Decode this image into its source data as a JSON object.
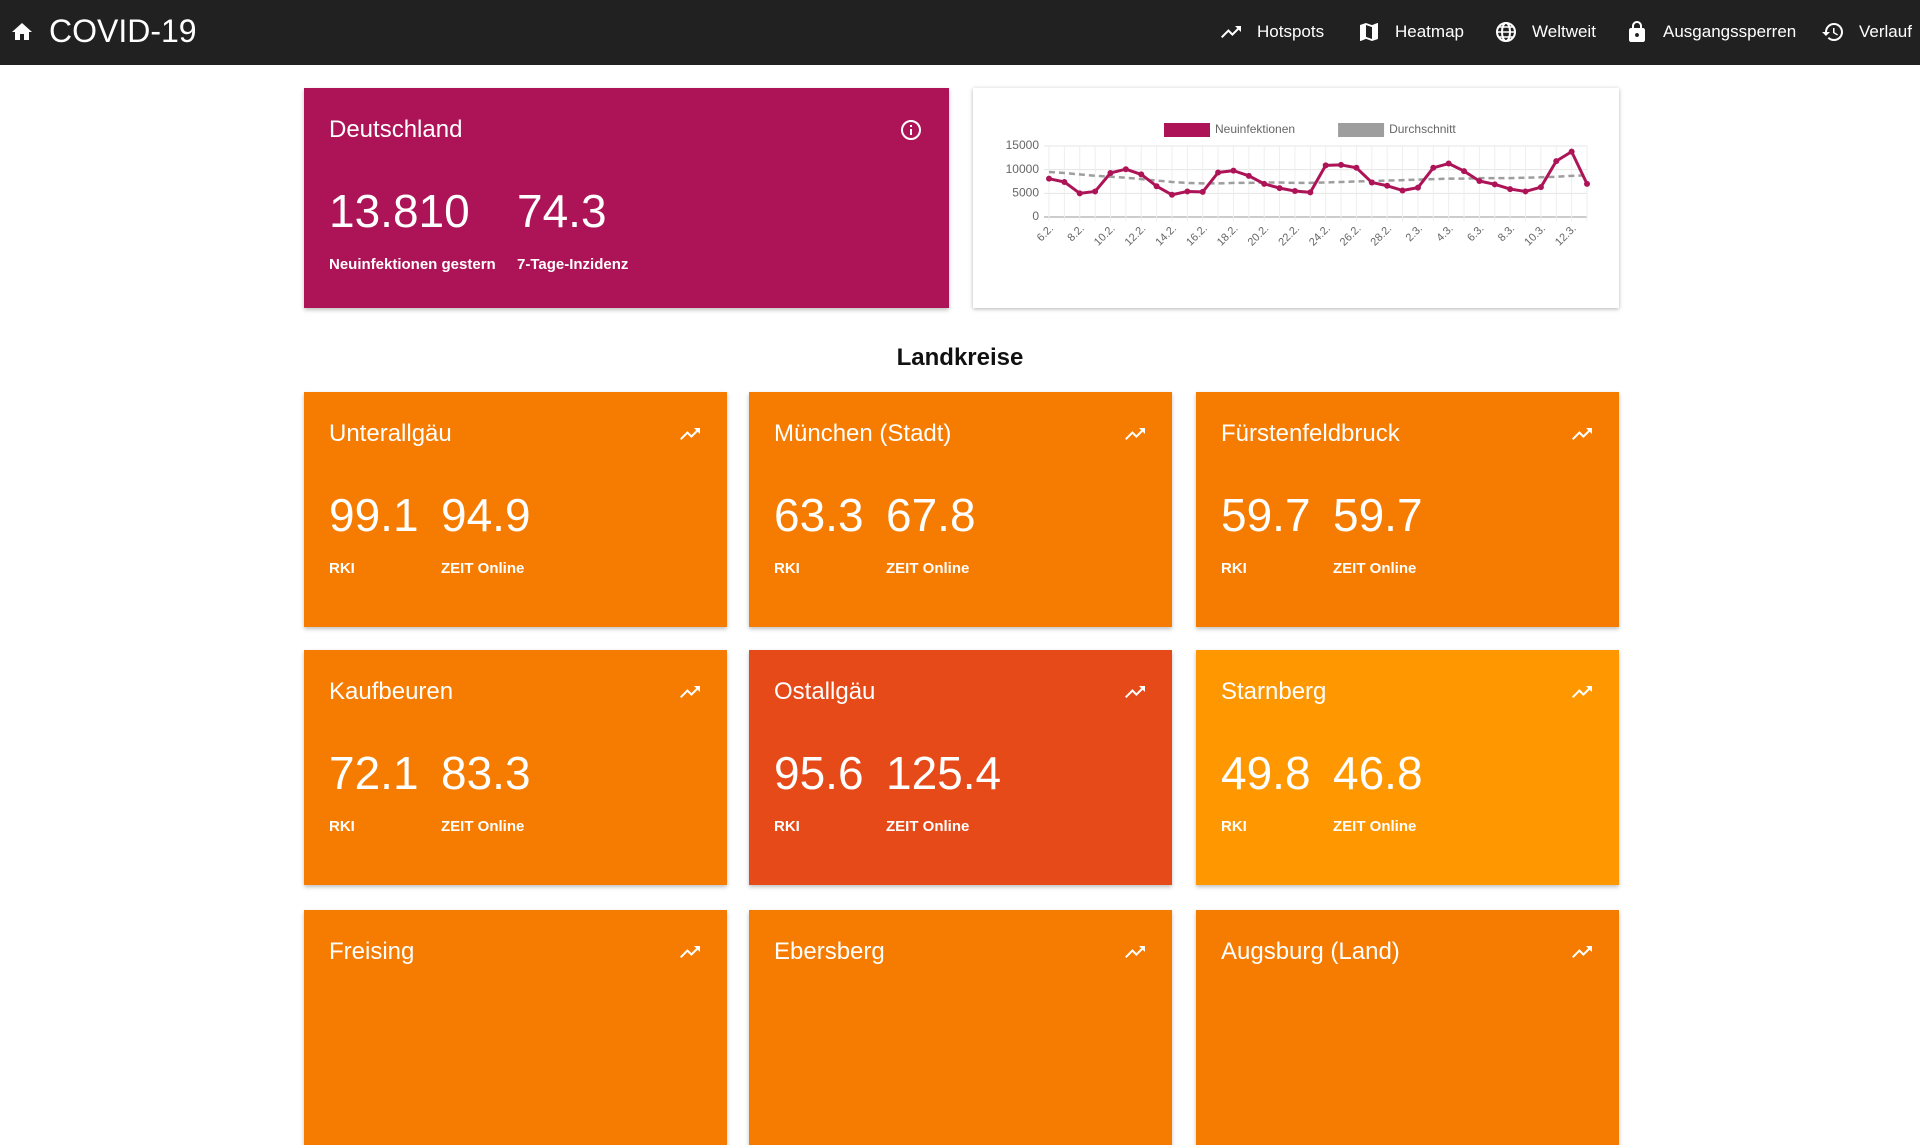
{
  "header": {
    "title": "COVID-19",
    "nav": [
      "Hotspots",
      "Heatmap",
      "Weltweit",
      "Ausgangssperren",
      "Verlauf"
    ]
  },
  "summary": {
    "title": "Deutschland",
    "color": "#ad1457",
    "stats": [
      {
        "value": "13.810",
        "label": "Neuinfektionen gestern"
      },
      {
        "value": "74.3",
        "label": "7-Tage-Inzidenz"
      }
    ]
  },
  "chart_data": {
    "type": "line",
    "categories": [
      "6.2.",
      null,
      "8.2.",
      null,
      "10.2.",
      null,
      "12.2.",
      null,
      "14.2.",
      null,
      "16.2.",
      null,
      "18.2.",
      null,
      "20.2.",
      null,
      "22.2.",
      null,
      "24.2.",
      null,
      "26.2.",
      null,
      "28.2.",
      null,
      "2.3.",
      null,
      "4.3.",
      null,
      "6.3.",
      null,
      "8.3.",
      null,
      "10.3.",
      null,
      "12.3.",
      null
    ],
    "series": [
      {
        "name": "Neuinfektionen",
        "color": "#ad1457",
        "values": [
          8100,
          7400,
          5000,
          5400,
          9300,
          10100,
          9000,
          6500,
          4700,
          5400,
          5300,
          9400,
          9800,
          8700,
          7000,
          6100,
          5500,
          5200,
          10900,
          11000,
          10400,
          7300,
          6600,
          5600,
          6200,
          10400,
          11300,
          9700,
          7600,
          6900,
          5900,
          5400,
          6300,
          11800,
          13810,
          7000
        ]
      },
      {
        "name": "Durchschnitt",
        "color": "#9e9e9e",
        "dashed": true,
        "values": [
          9500,
          9300,
          9000,
          8700,
          8500,
          8300,
          8000,
          7700,
          7400,
          7200,
          7100,
          7100,
          7200,
          7200,
          7300,
          7300,
          7200,
          7200,
          7300,
          7400,
          7500,
          7600,
          7700,
          7800,
          7900,
          8000,
          8100,
          8100,
          8200,
          8200,
          8200,
          8300,
          8400,
          8500,
          8700,
          8800
        ]
      }
    ],
    "ylim": [
      0,
      15000
    ],
    "yticks": [
      0,
      5000,
      10000,
      15000
    ],
    "grid": true,
    "legend": "top"
  },
  "section": {
    "title": "Landkreise",
    "districts": [
      {
        "name": "Unterallgäu",
        "color": "#f57c00",
        "rki": "99.1",
        "zeit": "94.9",
        "rki_label": "RKI",
        "zeit_label": "ZEIT Online"
      },
      {
        "name": "München (Stadt)",
        "color": "#f57c00",
        "rki": "63.3",
        "zeit": "67.8",
        "rki_label": "RKI",
        "zeit_label": "ZEIT Online"
      },
      {
        "name": "Fürstenfeldbruck",
        "color": "#f57c00",
        "rki": "59.7",
        "zeit": "59.7",
        "rki_label": "RKI",
        "zeit_label": "ZEIT Online"
      },
      {
        "name": "Kaufbeuren",
        "color": "#f57c00",
        "rki": "72.1",
        "zeit": "83.3",
        "rki_label": "RKI",
        "zeit_label": "ZEIT Online"
      },
      {
        "name": "Ostallgäu",
        "color": "#e64a19",
        "rki": "95.6",
        "zeit": "125.4",
        "rki_label": "RKI",
        "zeit_label": "ZEIT Online"
      },
      {
        "name": "Starnberg",
        "color": "#ff9800",
        "rki": "49.8",
        "zeit": "46.8",
        "rki_label": "RKI",
        "zeit_label": "ZEIT Online"
      },
      {
        "name": "Freising",
        "color": "#f57c00"
      },
      {
        "name": "Ebersberg",
        "color": "#f57c00"
      },
      {
        "name": "Augsburg (Land)",
        "color": "#f57c00"
      }
    ]
  }
}
